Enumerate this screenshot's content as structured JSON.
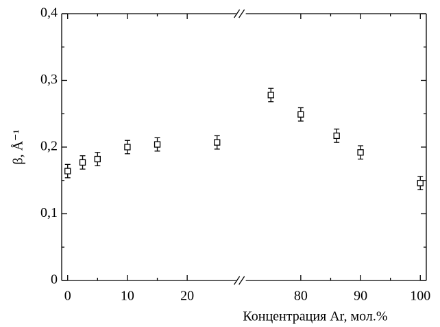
{
  "chart_data": {
    "type": "scatter",
    "x_label": "Концентрация Ar, мол.%",
    "y_label": "β, Å⁻¹",
    "x_segments": [
      {
        "xlim": [
          -1,
          29
        ],
        "xticks": [
          0,
          10,
          20
        ]
      },
      {
        "xlim": [
          70,
          101
        ],
        "xticks": [
          80,
          90,
          100
        ]
      }
    ],
    "ylim": [
      0,
      0.4
    ],
    "yticks": [
      0,
      {
        "value": 0.1,
        "label": "0,1"
      },
      {
        "value": 0.2,
        "label": "0,2"
      },
      {
        "value": 0.3,
        "label": "0,3"
      },
      {
        "value": 0.4,
        "label": "0,4"
      }
    ],
    "series": [
      {
        "color": "#000000",
        "x": [
          0,
          2.5,
          5,
          10,
          15,
          25,
          75,
          80,
          86,
          90,
          100
        ],
        "values": [
          0.164,
          0.177,
          0.182,
          0.2,
          0.204,
          0.207,
          0.278,
          0.249,
          0.217,
          0.192,
          0.146
        ],
        "errors": [
          0.01,
          0.01,
          0.01,
          0.01,
          0.01,
          0.01,
          0.01,
          0.01,
          0.01,
          0.01,
          0.01
        ]
      }
    ]
  }
}
